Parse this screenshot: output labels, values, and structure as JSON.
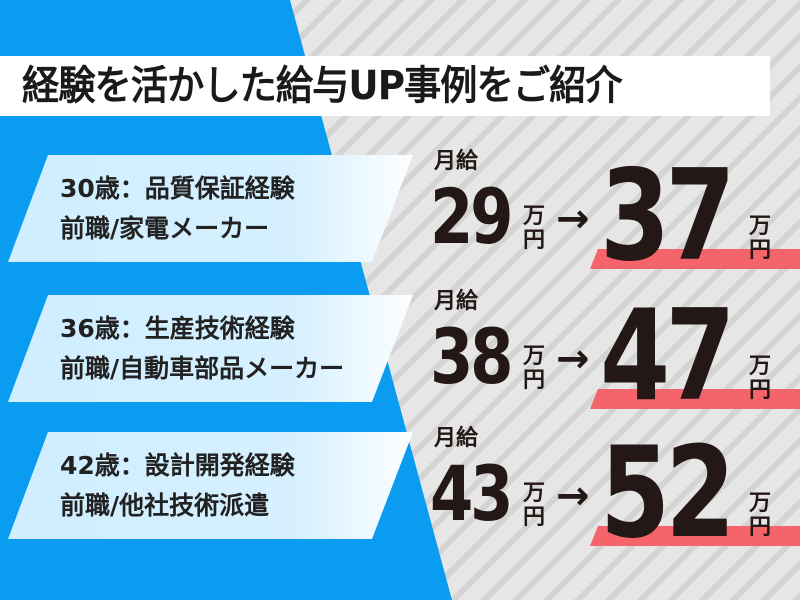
{
  "title": "経験を活かした給与UP事例をご紹介",
  "colors": {
    "blue": "#0a9cf0",
    "card": "#d6f0ff",
    "accent_red": "#f4646a",
    "text": "#231815"
  },
  "cases": [
    {
      "line1": "30歳：品質保証経験",
      "line2": "前職/家電メーカー",
      "label": "月給",
      "from": "29",
      "to": "37",
      "unit_top": "万",
      "unit_bottom": "円",
      "arrow": "→"
    },
    {
      "line1": "36歳：生産技術経験",
      "line2": "前職/自動車部品メーカー",
      "label": "月給",
      "from": "38",
      "to": "47",
      "unit_top": "万",
      "unit_bottom": "円",
      "arrow": "→"
    },
    {
      "line1": "42歳：設計開発経験",
      "line2": "前職/他社技術派遣",
      "label": "月給",
      "from": "43",
      "to": "52",
      "unit_top": "万",
      "unit_bottom": "円",
      "arrow": "→"
    }
  ]
}
